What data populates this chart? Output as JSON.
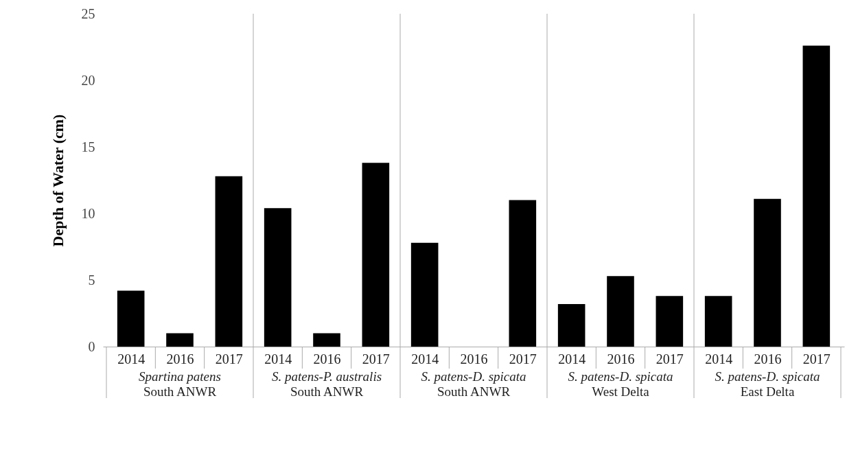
{
  "chart_data": {
    "type": "bar",
    "ylabel": "Depth of Water (cm)",
    "categories": [
      "2014",
      "2016",
      "2017",
      "2014",
      "2016",
      "2017",
      "2014",
      "2016",
      "2017",
      "2014",
      "2016",
      "2017",
      "2014",
      "2016",
      "2017"
    ],
    "values": [
      4.2,
      1.0,
      12.8,
      10.4,
      1.0,
      13.8,
      7.8,
      null,
      11.0,
      3.2,
      5.3,
      3.8,
      3.8,
      11.1,
      22.6
    ],
    "color": "#000000",
    "ylim": [
      0,
      25
    ],
    "yticks": [
      0,
      5,
      10,
      15,
      20,
      25
    ],
    "grid": false,
    "annotations": [
      "Spartina patens\nSouth ANWR",
      "S. patens-P. australis\nSouth ANWR",
      "S. patens-D. spicata\nSouth ANWR",
      "S. patens-D. spicata\nWest Delta",
      "S. patens-D. spicata\nEast Delta"
    ]
  }
}
